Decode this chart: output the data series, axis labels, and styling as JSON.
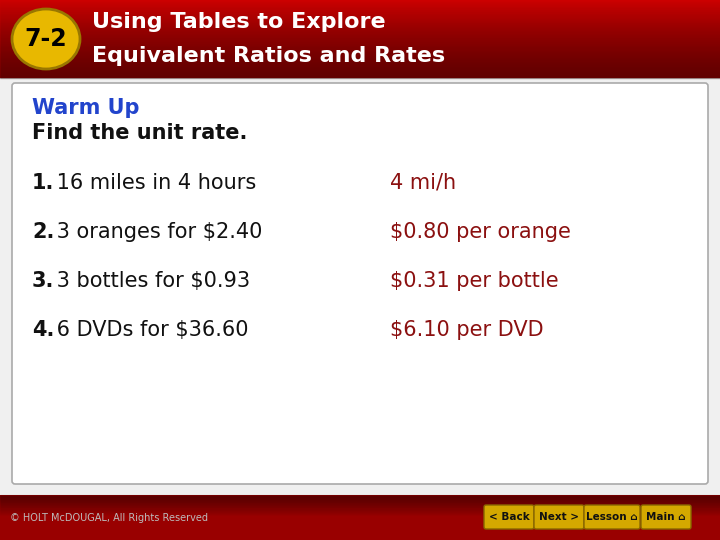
{
  "header_bg_color": "#CC0000",
  "header_text_color": "#FFFFFF",
  "header_line1": "Using Tables to Explore",
  "header_line2": "Equivalent Ratios and Rates",
  "badge_text": "7-2",
  "badge_bg": "#E8B800",
  "badge_text_color": "#000000",
  "body_bg": "#F0F0F0",
  "box_bg": "#FFFFFF",
  "box_border_color": "#AAAAAA",
  "warmup_label": "Warm Up",
  "warmup_label_color": "#2244CC",
  "subtitle": "Find the unit rate.",
  "subtitle_color": "#111111",
  "question_numbers": [
    "1.",
    "2.",
    "3.",
    "4."
  ],
  "question_texts": [
    " 16 miles in 4 hours",
    " 3 oranges for $2.40",
    " 3 bottles for $0.93",
    " 6 DVDs for $36.60"
  ],
  "answers": [
    "4 mi/h",
    "$0.80 per orange",
    "$0.31 per bottle",
    "$6.10 per DVD"
  ],
  "answer_color": "#8B1010",
  "question_color": "#111111",
  "footer_bg_color": "#990000",
  "footer_text": "© HOLT McDOUGAL, All Rights Reserved",
  "footer_text_color": "#BBBBBB",
  "footer_button_labels": [
    "< Back",
    "Next >",
    "Lesson ⌂",
    "Main ⌂"
  ],
  "footer_button_bg": "#D4A800",
  "footer_button_text_color": "#111111",
  "fig_width": 7.2,
  "fig_height": 5.4,
  "dpi": 100
}
